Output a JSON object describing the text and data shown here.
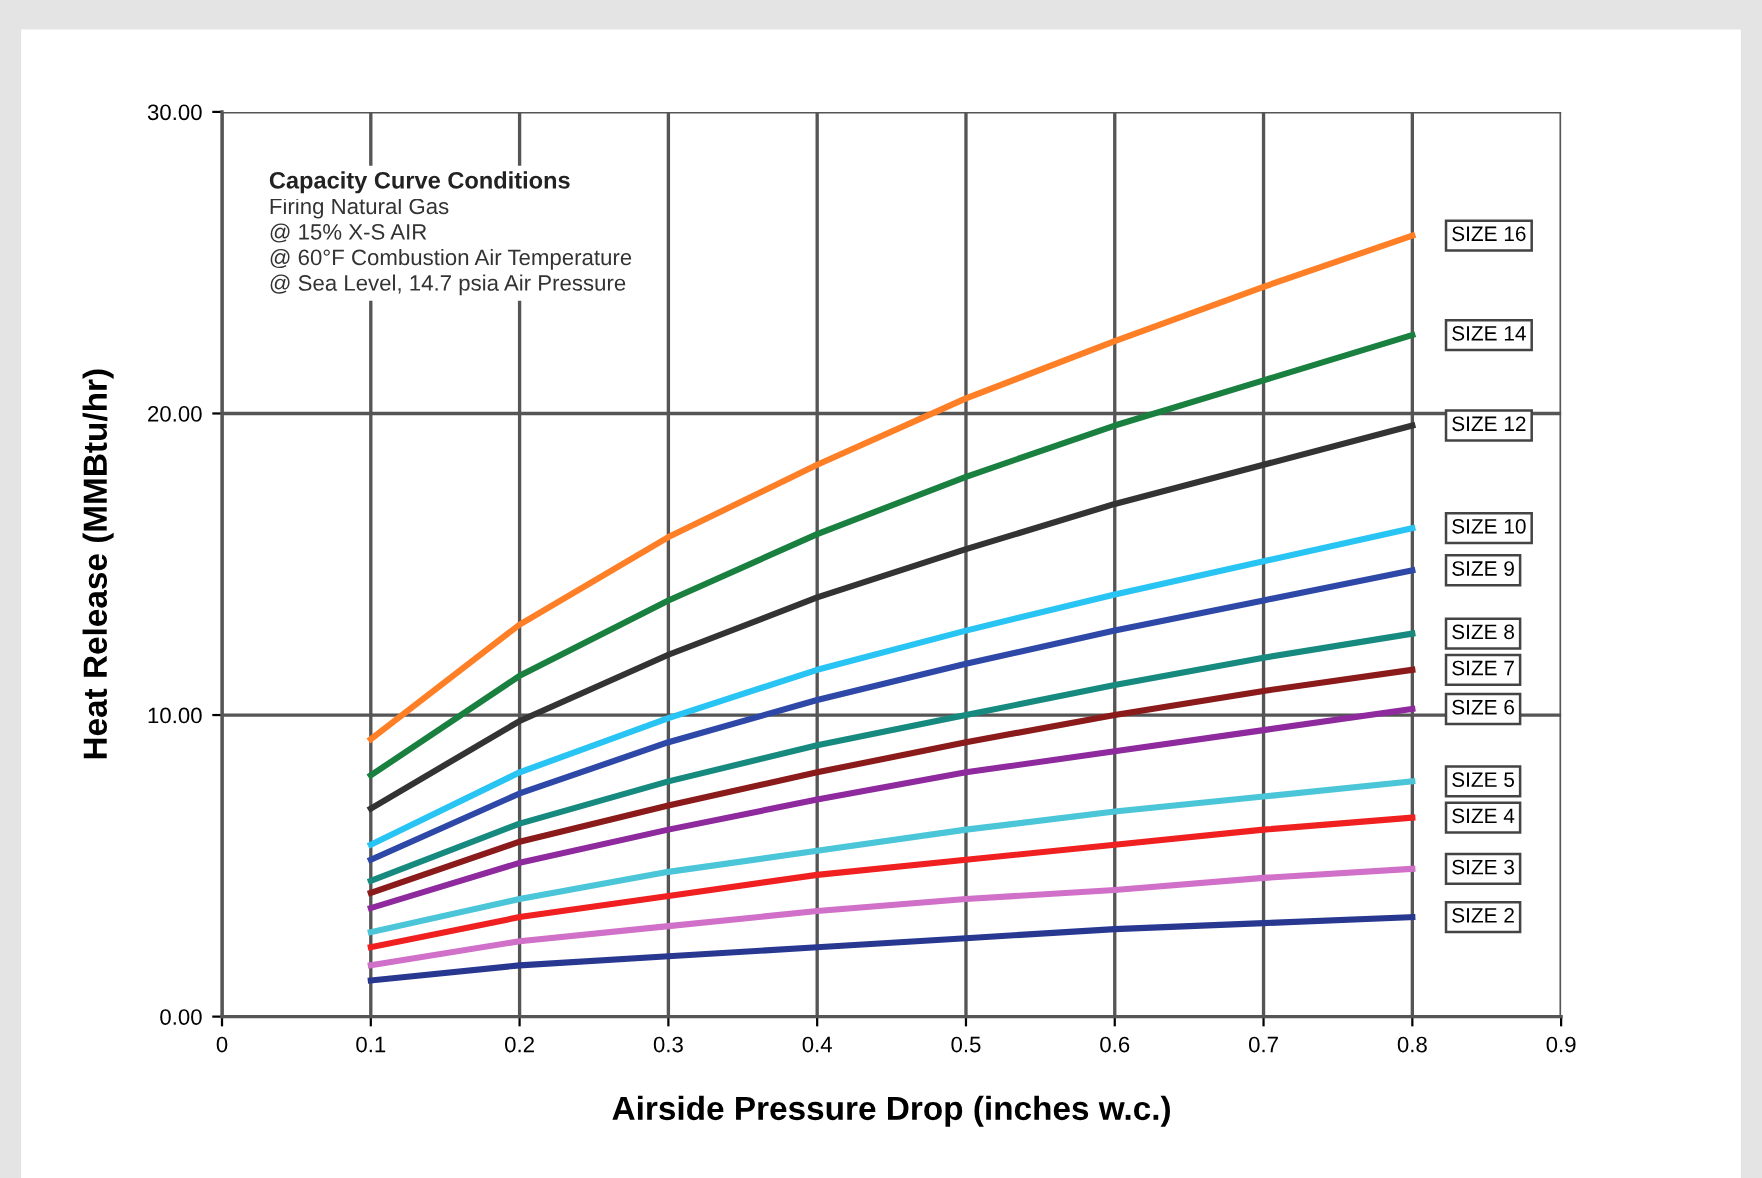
{
  "chart_data": {
    "type": "line",
    "xlabel": "Airside Pressure Drop (inches w.c.)",
    "ylabel": "Heat Release (MMBtu/hr)",
    "annotations": [
      "Capacity Curve Conditions",
      "Firing Natural Gas",
      "@ 15% X-S AIR",
      "@ 60°F Combustion Air Temperature",
      "@ Sea Level, 14.7 psia Air Pressure"
    ],
    "x": [
      0.1,
      0.2,
      0.3,
      0.4,
      0.5,
      0.6,
      0.7,
      0.8
    ],
    "xlim": [
      0,
      0.9
    ],
    "xticks": [
      0,
      0.1,
      0.2,
      0.3,
      0.4,
      0.5,
      0.6,
      0.7,
      0.8,
      0.9
    ],
    "ylim": [
      0,
      30
    ],
    "yticks": [
      {
        "value": 0,
        "label": "0.00"
      },
      {
        "value": 10,
        "label": "10.00"
      },
      {
        "value": 20,
        "label": "20.00"
      },
      {
        "value": 30,
        "label": "30.00"
      }
    ],
    "grid": true,
    "legend": false,
    "marker": "none",
    "line_style": "solid",
    "series": [
      {
        "name": "SIZE 16",
        "color": "#ff7f27",
        "values": [
          9.2,
          13.0,
          15.9,
          18.3,
          20.5,
          22.4,
          24.2,
          25.9
        ]
      },
      {
        "name": "SIZE 14",
        "color": "#1a8040",
        "values": [
          8.0,
          11.3,
          13.8,
          16.0,
          17.9,
          19.6,
          21.1,
          22.6
        ]
      },
      {
        "name": "SIZE 12",
        "color": "#333333",
        "values": [
          6.9,
          9.8,
          12.0,
          13.9,
          15.5,
          17.0,
          18.3,
          19.6
        ]
      },
      {
        "name": "SIZE 10",
        "color": "#27c4f4",
        "values": [
          5.7,
          8.1,
          9.9,
          11.5,
          12.8,
          14.0,
          15.1,
          16.2
        ]
      },
      {
        "name": "SIZE 9",
        "color": "#2e48a8",
        "values": [
          5.2,
          7.4,
          9.1,
          10.5,
          11.7,
          12.8,
          13.8,
          14.8
        ]
      },
      {
        "name": "SIZE 8",
        "color": "#178a80",
        "values": [
          4.5,
          6.4,
          7.8,
          9.0,
          10.0,
          11.0,
          11.9,
          12.7
        ]
      },
      {
        "name": "SIZE 7",
        "color": "#8b1a1a",
        "values": [
          4.1,
          5.8,
          7.0,
          8.1,
          9.1,
          10.0,
          10.8,
          11.5
        ]
      },
      {
        "name": "SIZE 6",
        "color": "#8e2a9e",
        "values": [
          3.6,
          5.1,
          6.2,
          7.2,
          8.1,
          8.8,
          9.5,
          10.2
        ]
      },
      {
        "name": "SIZE 5",
        "color": "#4ac6d8",
        "values": [
          2.8,
          3.9,
          4.8,
          5.5,
          6.2,
          6.8,
          7.3,
          7.8
        ]
      },
      {
        "name": "SIZE 4",
        "color": "#f02020",
        "values": [
          2.3,
          3.3,
          4.0,
          4.7,
          5.2,
          5.7,
          6.2,
          6.6
        ]
      },
      {
        "name": "SIZE 3",
        "color": "#d070c8",
        "values": [
          1.7,
          2.5,
          3.0,
          3.5,
          3.9,
          4.2,
          4.6,
          4.9
        ]
      },
      {
        "name": "SIZE 2",
        "color": "#283890",
        "values": [
          1.2,
          1.7,
          2.0,
          2.3,
          2.6,
          2.9,
          3.1,
          3.3
        ]
      }
    ]
  }
}
